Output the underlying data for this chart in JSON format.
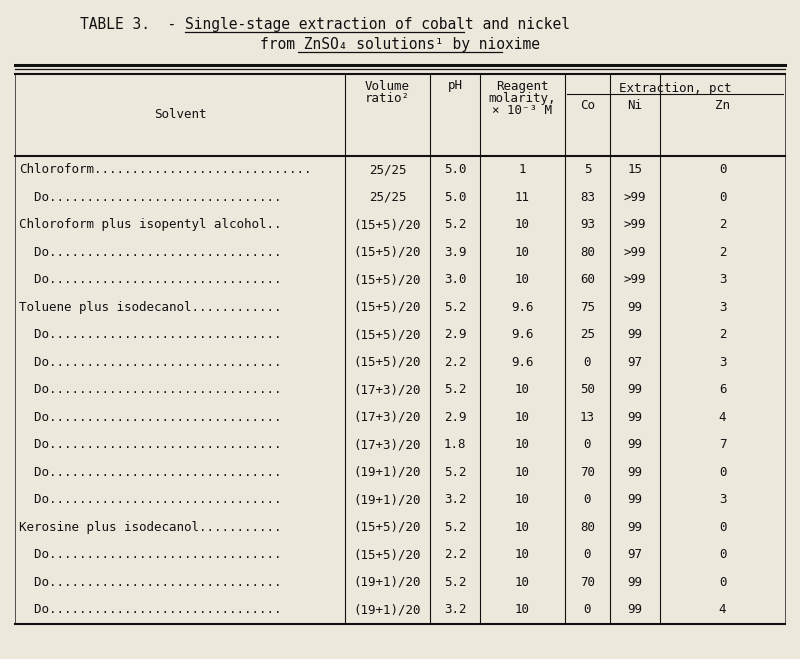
{
  "title_prefix": "TABLE 3.  - ",
  "title_underlined1": "Single-stage extraction of cobalt and nickel",
  "title_line2_plain": "from ZnSO",
  "title_line2_sub": "4",
  "title_line2_rest": " solutions",
  "title_line2_sup": "1",
  "title_line2_end": " by nioxime",
  "extraction_header": "Extraction, pct",
  "col_headers_row1": [
    "",
    "Volume",
    "",
    "Reagent",
    "Extraction, pct"
  ],
  "col_headers_row2": [
    "Solvent",
    "ratio²",
    "pH",
    "molarity,",
    "Co",
    "Ni",
    "Zn"
  ],
  "col_headers_row3": [
    "",
    "",
    "",
    "× 10⁻³ M",
    "",
    "",
    ""
  ],
  "rows": [
    [
      "Chloroform.............................",
      "25/25",
      "5.0",
      "1",
      "5",
      "15",
      "0"
    ],
    [
      "  Do...............................",
      "25/25",
      "5.0",
      "11",
      "83",
      ">99",
      "0"
    ],
    [
      "Chloroform plus isopentyl alcohol..",
      "(15+5)/20",
      "5.2",
      "10",
      "93",
      ">99",
      "2"
    ],
    [
      "  Do...............................",
      "(15+5)/20",
      "3.9",
      "10",
      "80",
      ">99",
      "2"
    ],
    [
      "  Do...............................",
      "(15+5)/20",
      "3.0",
      "10",
      "60",
      ">99",
      "3"
    ],
    [
      "Toluene plus isodecanol............",
      "(15+5)/20",
      "5.2",
      "9.6",
      "75",
      "99",
      "3"
    ],
    [
      "  Do...............................",
      "(15+5)/20",
      "2.9",
      "9.6",
      "25",
      "99",
      "2"
    ],
    [
      "  Do...............................",
      "(15+5)/20",
      "2.2",
      "9.6",
      "0",
      "97",
      "3"
    ],
    [
      "  Do...............................",
      "(17+3)/20",
      "5.2",
      "10",
      "50",
      "99",
      "6"
    ],
    [
      "  Do...............................",
      "(17+3)/20",
      "2.9",
      "10",
      "13",
      "99",
      "4"
    ],
    [
      "  Do...............................",
      "(17+3)/20",
      "1.8",
      "10",
      "0",
      "99",
      "7"
    ],
    [
      "  Do...............................",
      "(19+1)/20",
      "5.2",
      "10",
      "70",
      "99",
      "0"
    ],
    [
      "  Do...............................",
      "(19+1)/20",
      "3.2",
      "10",
      "0",
      "99",
      "3"
    ],
    [
      "Kerosine plus isodecanol...........",
      "(15+5)/20",
      "5.2",
      "10",
      "80",
      "99",
      "0"
    ],
    [
      "  Do...............................",
      "(15+5)/20",
      "2.2",
      "10",
      "0",
      "97",
      "0"
    ],
    [
      "  Do...............................",
      "(19+1)/20",
      "5.2",
      "10",
      "70",
      "99",
      "0"
    ],
    [
      "  Do...............................",
      "(19+1)/20",
      "3.2",
      "10",
      "0",
      "99",
      "4"
    ]
  ],
  "bg_color": "#ede8dc",
  "text_color": "#111111",
  "font_size": 9.0,
  "title_font_size": 10.5
}
